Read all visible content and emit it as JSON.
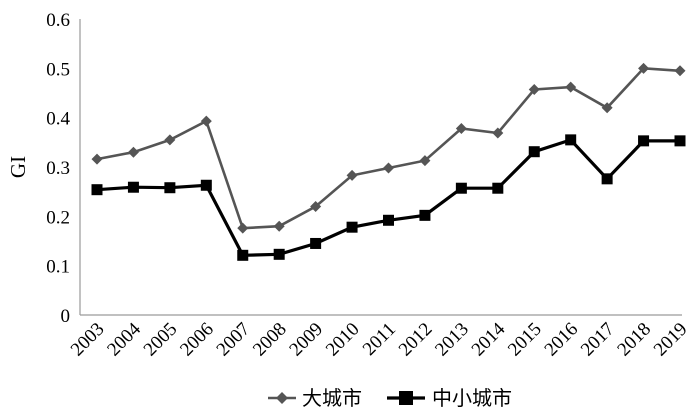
{
  "chart_data": {
    "type": "line",
    "title": "",
    "xlabel": "",
    "ylabel": "GI",
    "ylim": [
      0,
      0.6
    ],
    "yticks": [
      "0",
      "0.1",
      "0.2",
      "0.3",
      "0.4",
      "0.5",
      "0.6"
    ],
    "grid": false,
    "legend_position": "bottom",
    "categories": [
      "2003",
      "2004",
      "2005",
      "2006",
      "2007",
      "2008",
      "2009",
      "2010",
      "2011",
      "2012",
      "2013",
      "2014",
      "2015",
      "2016",
      "2017",
      "2018",
      "2019"
    ],
    "series": [
      {
        "name": "大城市",
        "marker": "diamond",
        "color": "#555555",
        "values": [
          0.316,
          0.33,
          0.355,
          0.393,
          0.176,
          0.18,
          0.22,
          0.283,
          0.298,
          0.313,
          0.378,
          0.369,
          0.457,
          0.462,
          0.42,
          0.5,
          0.495
        ]
      },
      {
        "name": "中小城市",
        "marker": "square",
        "color": "#000000",
        "values": [
          0.254,
          0.259,
          0.258,
          0.263,
          0.121,
          0.123,
          0.145,
          0.178,
          0.192,
          0.202,
          0.257,
          0.257,
          0.331,
          0.355,
          0.276,
          0.353,
          0.353
        ]
      }
    ]
  }
}
